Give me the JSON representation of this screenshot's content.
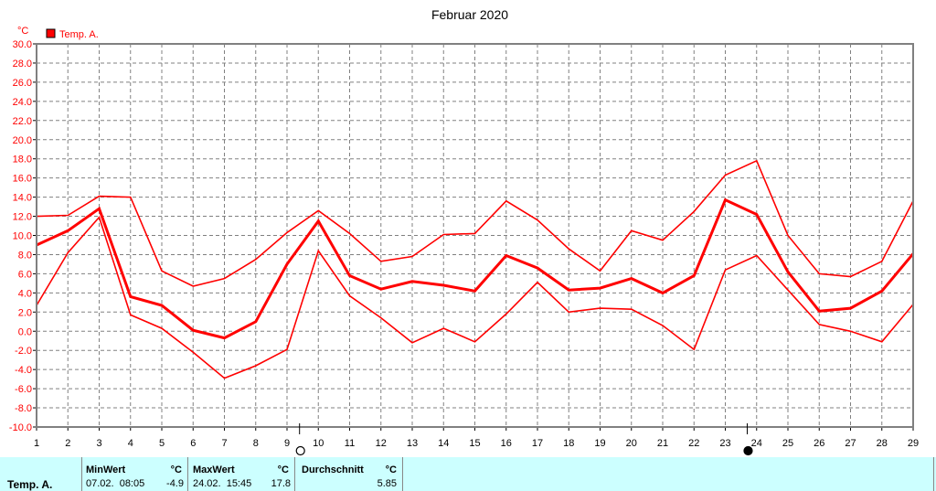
{
  "chart_data": {
    "type": "line",
    "title": "Februar 2020",
    "ylabel": "°C",
    "xlabel": "",
    "ylim": [
      -10.0,
      30.0
    ],
    "yticks": [
      "30.0",
      "28.0",
      "26.0",
      "24.0",
      "22.0",
      "20.0",
      "18.0",
      "16.0",
      "14.0",
      "12.0",
      "10.0",
      "8.0",
      "6.0",
      "4.0",
      "2.0",
      "0.0",
      "-2.0",
      "-4.0",
      "-6.0",
      "-8.0",
      "-10.0"
    ],
    "x": [
      1,
      2,
      3,
      4,
      5,
      6,
      7,
      8,
      9,
      10,
      11,
      12,
      13,
      14,
      15,
      16,
      17,
      18,
      19,
      20,
      21,
      22,
      23,
      24,
      25,
      26,
      27,
      28,
      29
    ],
    "grid": true,
    "legend": [
      {
        "name": "Temp. A.",
        "color": "#ff0000"
      }
    ],
    "series": [
      {
        "name": "Temp. A. max",
        "values": [
          12.0,
          12.1,
          14.1,
          14.0,
          6.3,
          4.7,
          5.5,
          7.5,
          10.3,
          12.6,
          10.2,
          7.3,
          7.8,
          10.1,
          10.2,
          13.6,
          11.6,
          8.6,
          6.3,
          10.5,
          9.5,
          12.5,
          16.3,
          17.8,
          10.0,
          6.0,
          5.7,
          7.3,
          13.6
        ]
      },
      {
        "name": "Temp. A. avg",
        "values": [
          9.0,
          10.5,
          12.8,
          3.6,
          2.7,
          0.1,
          -0.7,
          1.0,
          7.0,
          11.5,
          5.8,
          4.4,
          5.2,
          4.8,
          4.2,
          7.9,
          6.6,
          4.3,
          4.5,
          5.5,
          4.0,
          5.8,
          13.7,
          12.2,
          6.2,
          2.1,
          2.4,
          4.2,
          8.1
        ]
      },
      {
        "name": "Temp. A. min",
        "values": [
          2.7,
          8.2,
          11.9,
          1.7,
          0.3,
          -2.2,
          -4.9,
          -3.6,
          -1.9,
          8.4,
          3.7,
          1.4,
          -1.2,
          0.3,
          -1.1,
          1.8,
          5.1,
          2.0,
          2.4,
          2.3,
          0.6,
          -1.9,
          6.4,
          7.9,
          4.3,
          0.7,
          0.0,
          -1.1,
          2.8
        ]
      }
    ],
    "markers": [
      {
        "type": "min",
        "x": 9.4,
        "symbol": "open-circle"
      },
      {
        "type": "max",
        "x": 23.7,
        "symbol": "filled-circle"
      }
    ]
  },
  "stats": {
    "series_label": "Temp. A.",
    "min": {
      "header": "MinWert",
      "unit": "°C",
      "datetime": "07.02.  08:05",
      "value": "-4.9"
    },
    "max": {
      "header": "MaxWert",
      "unit": "°C",
      "datetime": "24.02.  15:45",
      "value": "17.8"
    },
    "avg": {
      "header": "Durchschnitt",
      "unit": "°C",
      "value": "5.85"
    }
  },
  "colors": {
    "series": "#ff0000",
    "grid": "#808080",
    "stats_bg": "#ccffff"
  }
}
